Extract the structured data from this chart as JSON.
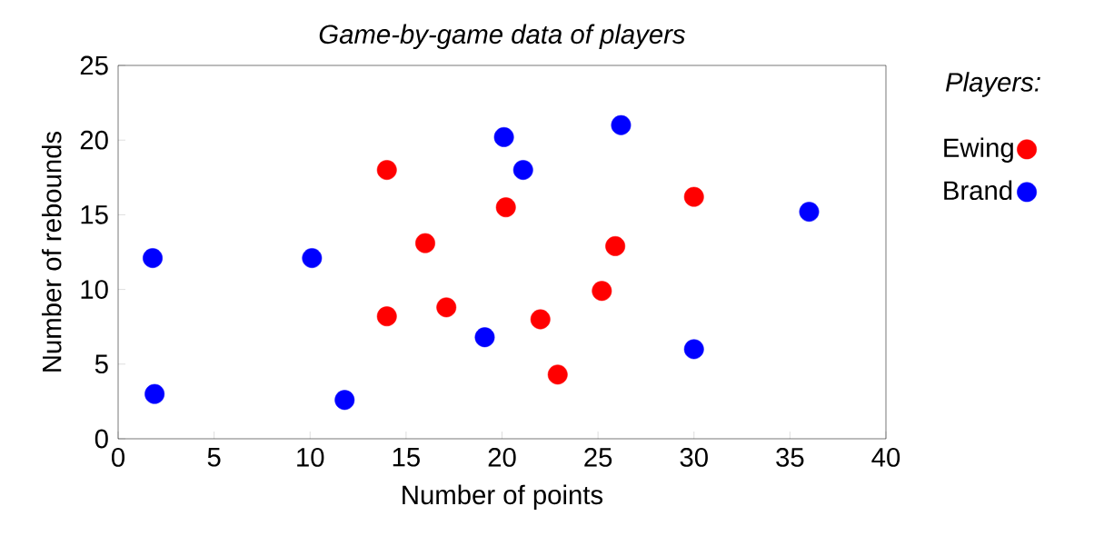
{
  "chart_data": {
    "type": "scatter",
    "title": "Game-by-game data of players",
    "xlabel": "Number of points",
    "ylabel": "Number of rebounds",
    "legend_title": "Players:",
    "series": [
      {
        "name": "Ewing",
        "color": "#ff0000",
        "x": [
          14,
          16,
          20.2,
          14,
          17.1,
          22,
          22.9,
          25.2,
          25.9,
          30
        ],
        "values": [
          18,
          13.1,
          15.5,
          8.2,
          8.8,
          8,
          4.3,
          9.9,
          12.9,
          16.2
        ]
      },
      {
        "name": "Brand",
        "color": "#0000ff",
        "x": [
          1.8,
          1.9,
          10.1,
          11.8,
          19.1,
          20.1,
          21.1,
          26.2,
          30,
          36
        ],
        "values": [
          12.1,
          3,
          12.1,
          2.6,
          6.8,
          20.2,
          18,
          21,
          6,
          15.2
        ]
      }
    ],
    "xlim": [
      0,
      40
    ],
    "ylim": [
      0,
      25
    ],
    "xticks": [
      0,
      5,
      10,
      15,
      20,
      25,
      30,
      35,
      40
    ],
    "yticks": [
      0,
      5,
      10,
      15,
      20,
      25
    ],
    "grid": false,
    "legend": "right",
    "marker": "circle"
  }
}
